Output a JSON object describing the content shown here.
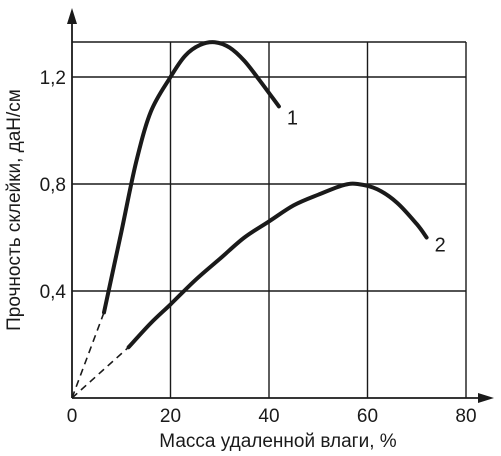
{
  "chart_data": {
    "type": "line",
    "xlabel": "Масса удаленной влаги, %",
    "ylabel": "Прочность склейки, даН/см",
    "xlim": [
      0,
      80
    ],
    "ylim": [
      0,
      1.5
    ],
    "x_ticks": [
      "0",
      "20",
      "40",
      "60",
      "80"
    ],
    "y_ticks": [
      "0,4",
      "0,8",
      "1,2"
    ],
    "grid": true,
    "series": [
      {
        "name": "1",
        "dashed_segment": [
          [
            0,
            0
          ],
          [
            6.5,
            0.32
          ]
        ],
        "points": [
          [
            6.5,
            0.32
          ],
          [
            10,
            0.62
          ],
          [
            13,
            0.88
          ],
          [
            16,
            1.07
          ],
          [
            20,
            1.2
          ],
          [
            23,
            1.28
          ],
          [
            26,
            1.32
          ],
          [
            29,
            1.33
          ],
          [
            32,
            1.31
          ],
          [
            35,
            1.26
          ],
          [
            38,
            1.19
          ],
          [
            42,
            1.09
          ]
        ]
      },
      {
        "name": "2",
        "dashed_segment": [
          [
            0,
            0
          ],
          [
            11.5,
            0.19
          ]
        ],
        "points": [
          [
            11.5,
            0.19
          ],
          [
            16,
            0.28
          ],
          [
            20,
            0.35
          ],
          [
            25,
            0.44
          ],
          [
            30,
            0.52
          ],
          [
            35,
            0.6
          ],
          [
            40,
            0.66
          ],
          [
            45,
            0.72
          ],
          [
            50,
            0.76
          ],
          [
            55,
            0.795
          ],
          [
            58,
            0.8
          ],
          [
            62,
            0.78
          ],
          [
            66,
            0.73
          ],
          [
            70,
            0.65
          ],
          [
            72,
            0.6
          ]
        ]
      }
    ]
  }
}
